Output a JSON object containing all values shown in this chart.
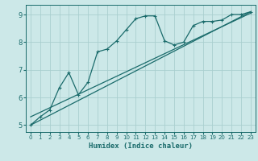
{
  "xlabel": "Humidex (Indice chaleur)",
  "ylabel": "",
  "bg_color": "#cce8e8",
  "line_color": "#1a6b6b",
  "grid_color": "#aacfcf",
  "xlim": [
    -0.5,
    23.5
  ],
  "ylim": [
    4.75,
    9.35
  ],
  "xticks": [
    0,
    1,
    2,
    3,
    4,
    5,
    6,
    7,
    8,
    9,
    10,
    11,
    12,
    13,
    14,
    15,
    16,
    17,
    18,
    19,
    20,
    21,
    22,
    23
  ],
  "yticks": [
    5,
    6,
    7,
    8,
    9
  ],
  "series1_x": [
    0,
    1,
    2,
    3,
    4,
    5,
    6,
    7,
    8,
    9,
    10,
    11,
    12,
    13,
    14,
    15,
    16,
    17,
    18,
    19,
    20,
    21,
    22,
    23
  ],
  "series1_y": [
    5.0,
    5.3,
    5.55,
    6.35,
    6.9,
    6.1,
    6.55,
    7.65,
    7.75,
    8.05,
    8.45,
    8.85,
    8.95,
    8.95,
    8.05,
    7.9,
    8.0,
    8.6,
    8.75,
    8.75,
    8.8,
    9.0,
    9.0,
    9.1
  ],
  "line2_x": [
    0,
    23
  ],
  "line2_y": [
    5.0,
    9.1
  ],
  "line3_x": [
    0,
    23
  ],
  "line3_y": [
    5.3,
    9.05
  ]
}
